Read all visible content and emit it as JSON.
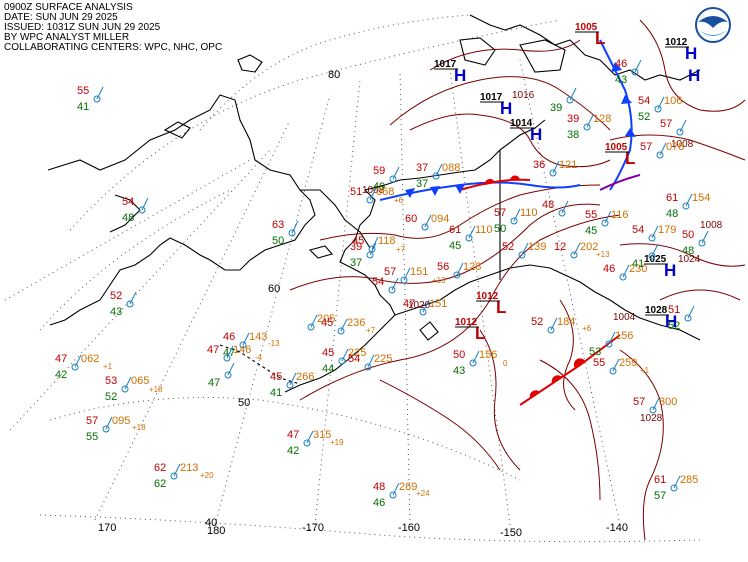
{
  "header": {
    "line1": "0900Z SURFACE ANALYSIS",
    "line2": "DATE: SUN JUN 29 2025",
    "line3": "ISSUED: 1031Z SUN JUN 29 2025",
    "line4": "BY WPC ANALYST MILLER",
    "line5": "COLLABORATING CENTERS: WPC, NHC, OPC"
  },
  "colors": {
    "isobar": "#7a0000",
    "coast": "#000000",
    "grid": "#555555",
    "temp": "#c00000",
    "dew": "#007000",
    "pres": "#d07000",
    "high": "#0000c8",
    "low": "#c00000",
    "front_cold": "#1040ff",
    "front_warm": "#e00000"
  },
  "grid_labels": {
    "lat80": "80",
    "lat60": "60",
    "lat50": "50",
    "lat40": "40",
    "lon170": "170",
    "lon180": "180",
    "lonm170": "-170",
    "lonm160": "-160",
    "lonm150": "-150",
    "lonm140": "-140"
  },
  "centers": [
    {
      "type": "H",
      "pressure": "1017",
      "sym": "high-symbol",
      "lab": "high-pressure-label"
    },
    {
      "type": "H",
      "pressure": "1017",
      "sym": "high-symbol",
      "lab": "high-pressure-label"
    },
    {
      "type": "H",
      "pressure": "1014",
      "sym": "high-symbol",
      "lab": "high-pressure-label"
    },
    {
      "type": "L",
      "pressure": "1005",
      "sym": "low-symbol",
      "lab": "low-pressure-label"
    },
    {
      "type": "H",
      "pressure": "1012",
      "sym": "high-symbol",
      "lab": "high-pressure-label"
    },
    {
      "type": "L",
      "pressure": "1005",
      "sym": "low-symbol",
      "lab": "low-pressure-label"
    },
    {
      "type": "L",
      "pressure": "1012",
      "sym": "low-symbol",
      "lab": "low-pressure-label"
    },
    {
      "type": "L",
      "pressure": "1012",
      "sym": "low-symbol",
      "lab": "low-pressure-label"
    },
    {
      "type": "H",
      "pressure": "1025",
      "sym": "high-symbol",
      "lab": "high-pressure-label"
    },
    {
      "type": "H",
      "pressure": "1028",
      "sym": "high-symbol",
      "lab": "high-pressure-label"
    },
    {
      "type": "H",
      "pressure": "",
      "sym": "high-symbol",
      "lab": "high-pressure-label"
    }
  ],
  "isobar_labels": [
    "1008",
    "1008",
    "1016",
    "1004",
    "1024",
    "1028",
    "1020",
    "1008"
  ],
  "stations": [
    {
      "t": "55",
      "d": "41",
      "p": ""
    },
    {
      "t": "54",
      "d": "48",
      "p": ""
    },
    {
      "t": "52",
      "d": "43",
      "p": ""
    },
    {
      "t": "63",
      "d": "50",
      "p": ""
    },
    {
      "t": "59",
      "d": "49",
      "p": ""
    },
    {
      "t": "51",
      "d": "",
      "p": "068"
    },
    {
      "t": "37",
      "d": "37",
      "p": "088"
    },
    {
      "t": "60",
      "d": "",
      "p": "094"
    },
    {
      "t": "39",
      "d": "37",
      "p": ""
    },
    {
      "t": "45",
      "d": "",
      "p": "118"
    },
    {
      "t": "61",
      "d": "45",
      "p": "110"
    },
    {
      "t": "57",
      "d": "50",
      "p": "110"
    },
    {
      "t": "36",
      "d": "",
      "p": "121"
    },
    {
      "t": "48",
      "d": "",
      "p": ""
    },
    {
      "t": "55",
      "d": "45",
      "p": "116"
    },
    {
      "t": "52",
      "d": "",
      "p": "139"
    },
    {
      "t": "12",
      "d": "",
      "p": "202"
    },
    {
      "t": "57",
      "d": "",
      "p": "151"
    },
    {
      "t": "56",
      "d": "",
      "p": "128"
    },
    {
      "t": "54",
      "d": "",
      "p": ""
    },
    {
      "t": "47",
      "d": "",
      "p": "151"
    },
    {
      "t": "46",
      "d": "47",
      "p": "143"
    },
    {
      "t": "47",
      "d": "",
      "p": "146"
    },
    {
      "t": "",
      "d": "",
      "p": "205"
    },
    {
      "t": "45",
      "d": "",
      "p": "236"
    },
    {
      "t": "45",
      "d": "44",
      "p": "225"
    },
    {
      "t": "54",
      "d": "",
      "p": "225"
    },
    {
      "t": "45",
      "d": "41",
      "p": "266"
    },
    {
      "t": "47",
      "d": "42",
      "p": "062"
    },
    {
      "t": "53",
      "d": "52",
      "p": "065"
    },
    {
      "t": "57",
      "d": "55",
      "p": "095"
    },
    {
      "t": "47",
      "d": "42",
      "p": "315"
    },
    {
      "t": "62",
      "d": "62",
      "p": "213"
    },
    {
      "t": "48",
      "d": "46",
      "p": "269"
    },
    {
      "t": "50",
      "d": "43",
      "p": "156"
    },
    {
      "t": "52",
      "d": "",
      "p": "184"
    },
    {
      "t": "46",
      "d": "",
      "p": "230"
    },
    {
      "t": "55",
      "d": "",
      "p": "259"
    },
    {
      "t": "57",
      "d": "",
      "p": "300"
    },
    {
      "t": "61",
      "d": "57",
      "p": "285"
    },
    {
      "t": "54",
      "d": "",
      "p": "179"
    },
    {
      "t": "61",
      "d": "48",
      "p": "154"
    },
    {
      "t": "50",
      "d": "48",
      "p": ""
    },
    {
      "t": "57",
      "d": "",
      "p": "078"
    },
    {
      "t": "54",
      "d": "52",
      "p": "106"
    },
    {
      "t": "46",
      "d": "43",
      "p": ""
    },
    {
      "t": "39",
      "d": "38",
      "p": "128"
    },
    {
      "t": "",
      "d": "39",
      "p": ""
    },
    {
      "t": "57",
      "d": "",
      "p": ""
    },
    {
      "t": "51",
      "d": "52",
      "p": ""
    },
    {
      "t": "",
      "d": "53",
      "p": "156"
    },
    {
      "t": "",
      "d": "41",
      "p": ""
    },
    {
      "t": "",
      "d": "47",
      "p": ""
    }
  ],
  "tendencies": [
    "+6",
    "+7",
    "+13",
    "+18",
    "+1",
    "-4",
    "-13",
    "+18",
    "+19",
    "+20",
    "+24",
    "+13",
    "+6",
    "+1",
    "0",
    "+7"
  ]
}
